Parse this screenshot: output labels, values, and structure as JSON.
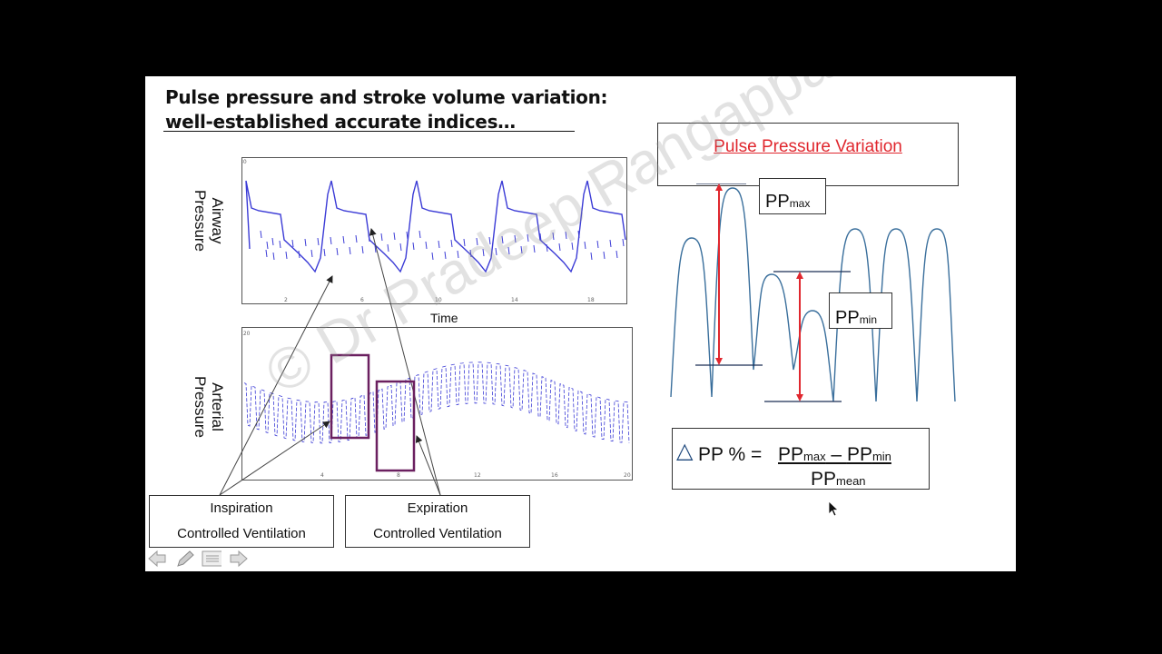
{
  "slide": {
    "title_line1": "Pulse pressure and stroke volume variation:",
    "title_line2": "well-established accurate indices…",
    "airway": {
      "ylabel_line1": "Airway",
      "ylabel_line2": "Pressure",
      "xlabel": "Time"
    },
    "arterial": {
      "ylabel_line1": "Arterial",
      "ylabel_line2": "Pressure"
    },
    "inspiration": {
      "line1": "Inspiration",
      "line2": "Controlled Ventilation"
    },
    "expiration": {
      "line1": "Expiration",
      "line2": "Controlled Ventilation"
    },
    "ppv": {
      "title": "Pulse Pressure Variation",
      "ppmax_main": "PP",
      "ppmax_sub": "max",
      "ppmin_main": "PP",
      "ppmin_sub": "min"
    },
    "formula": {
      "lhs": "PP % =",
      "num_main1": "PP",
      "num_sub1": "max",
      "num_minus": " – ",
      "num_main2": "PP",
      "num_sub2": "min",
      "den_main": "PP",
      "den_sub": "mean"
    },
    "watermark": "© Dr Pradeep Rangappa",
    "colors": {
      "trace": "#3b3bd6",
      "highlight_box": "#6b2060",
      "ppv_title": "#e0272e",
      "arrow_red": "#e0272e",
      "wave": "#3a6f9c"
    }
  },
  "nav": {
    "prev_icon": "arrow-left-icon",
    "pen_icon": "pen-icon",
    "menu_icon": "menu-icon",
    "next_icon": "arrow-right-icon"
  }
}
